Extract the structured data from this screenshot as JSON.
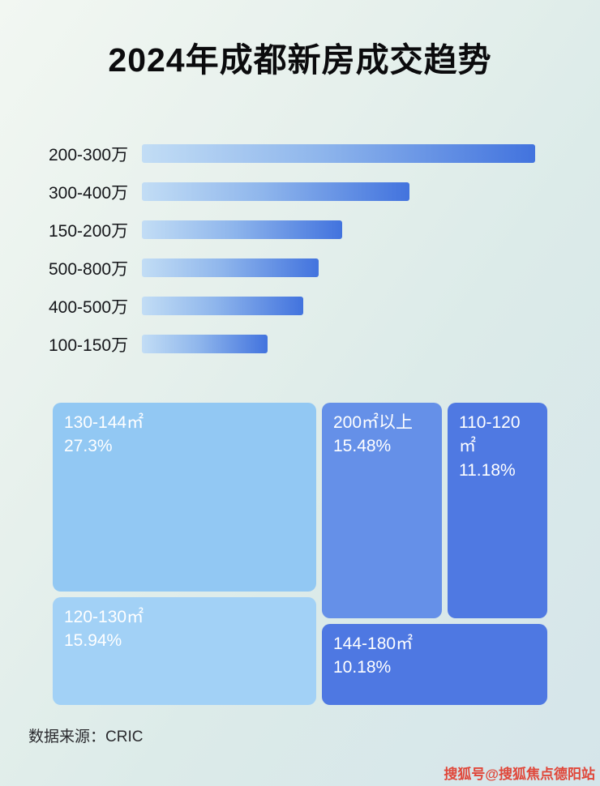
{
  "page": {
    "title": "2024年成都新房成交趋势",
    "footer_source": "数据来源：CRIC",
    "watermark": "搜狐号@搜狐焦点德阳站"
  },
  "colors": {
    "bar_gradient_start": "#c2ddf5",
    "bar_gradient_end": "#4273de",
    "watermark_red": "#e0473a",
    "background_tint": "#e0ecea"
  },
  "chart_data": [
    {
      "type": "bar",
      "orientation": "horizontal",
      "title": "2024年成都新房成交趋势",
      "categories": [
        "200-300万",
        "300-400万",
        "150-200万",
        "500-800万",
        "400-500万",
        "100-150万"
      ],
      "values": [
        100,
        68,
        51,
        45,
        41,
        32
      ],
      "value_note": "relative bar lengths as % of longest bar; no numeric axis or data labels shown in image",
      "xlabel": "",
      "ylabel": "",
      "grid": false,
      "legend": false
    },
    {
      "type": "treemap",
      "title": "",
      "items": [
        {
          "label": "130-144㎡",
          "pct_label": "27.3%",
          "value": 27.3,
          "color": "#92c8f3"
        },
        {
          "label": "120-130㎡",
          "pct_label": "15.94%",
          "value": 15.94,
          "color": "#a2d1f6"
        },
        {
          "label": "200㎡以上",
          "pct_label": "15.48%",
          "value": 15.48,
          "color": "#6590e8"
        },
        {
          "label": "110-120㎡",
          "pct_label": "11.18%",
          "value": 11.18,
          "color": "#4f79e2"
        },
        {
          "label": "144-180㎡",
          "pct_label": "10.18%",
          "value": 10.18,
          "color": "#4e78e2"
        }
      ]
    }
  ]
}
